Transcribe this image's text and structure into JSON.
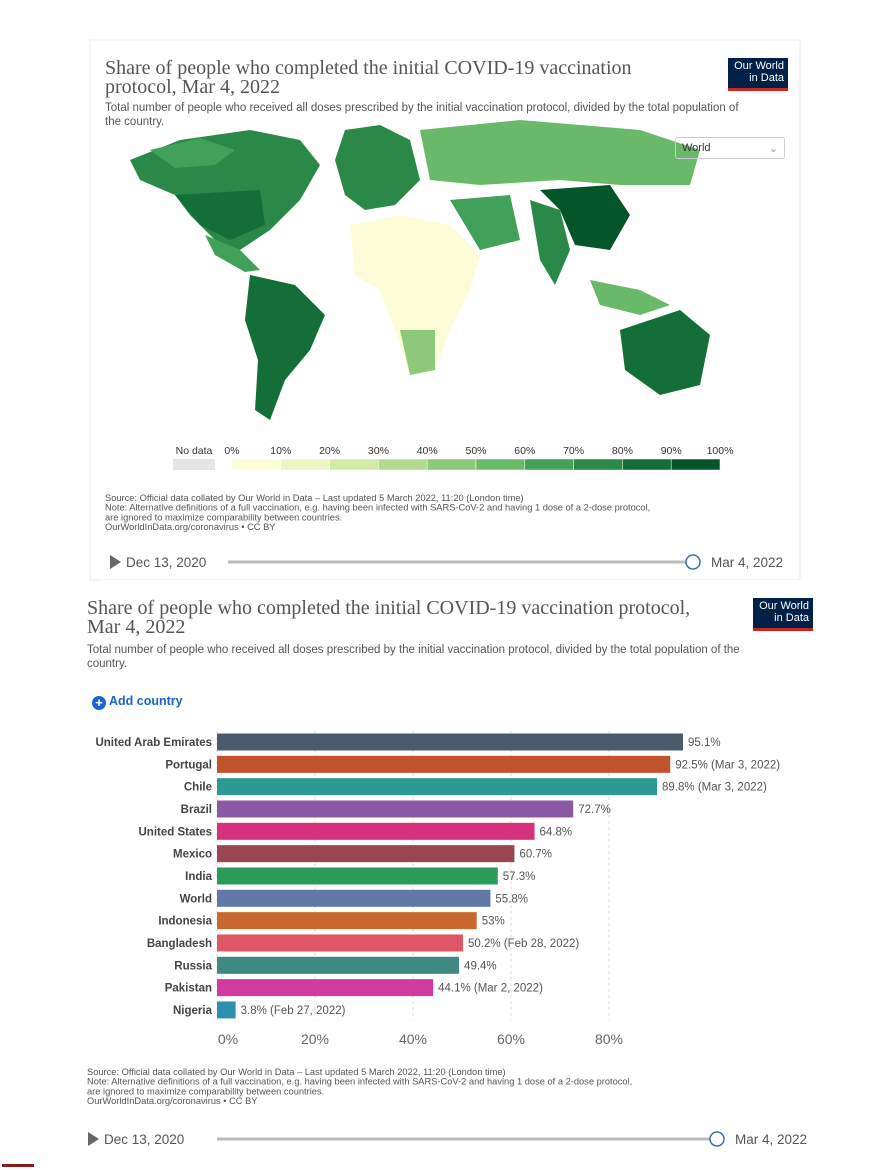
{
  "map_panel": {
    "title": "Share of people who completed the initial COVID-19 vaccination protocol, Mar 4, 2022",
    "subtitle": "Total number of people who received all doses prescribed by the initial vaccination protocol, divided by the total population of the country.",
    "logo": [
      "Our World",
      "in Data"
    ],
    "region_select": "World",
    "legend": {
      "no_data": "No data",
      "no_data_color": "#e5e5e5",
      "labels": [
        "0%",
        "10%",
        "20%",
        "30%",
        "40%",
        "50%",
        "60%",
        "70%",
        "80%",
        "90%",
        "100%"
      ],
      "colors": [
        "#fdfcd9",
        "#eef5c4",
        "#d3e9a6",
        "#b3da90",
        "#8ec97b",
        "#6ab96a",
        "#41a05a",
        "#2a8848",
        "#146e38",
        "#05552b"
      ]
    },
    "source_lines": [
      "Source: Official data collated by Our World in Data – Last updated 5 March 2022, 11:20 (London time)",
      "Note: Alternative definitions of a full vaccination, e.g. having been infected with SARS-CoV-2 and having 1 dose of a 2-dose protocol,",
      "are ignored to maximize comparability between countries.",
      "OurWorldInData.org/coronavirus • CC BY"
    ],
    "timeline": {
      "start": "Dec 13, 2020",
      "end": "Mar 4, 2022"
    }
  },
  "chart_data": {
    "type": "bar",
    "title": "Share of people who completed the initial COVID-19 vaccination protocol, Mar 4, 2022",
    "subtitle": "Total number of people who received all doses prescribed by the initial vaccination protocol, divided by the total population of the country.",
    "logo": [
      "Our World",
      "in Data"
    ],
    "add_country": "Add country",
    "categories": [
      "United Arab Emirates",
      "Portugal",
      "Chile",
      "Brazil",
      "United States",
      "Mexico",
      "India",
      "World",
      "Indonesia",
      "Bangladesh",
      "Russia",
      "Pakistan",
      "Nigeria"
    ],
    "values": [
      95.1,
      92.5,
      89.8,
      72.7,
      64.8,
      60.7,
      57.3,
      55.8,
      53,
      50.2,
      49.4,
      44.1,
      3.8
    ],
    "value_labels": [
      "95.1%",
      "92.5% (Mar 3, 2022)",
      "89.8% (Mar 3, 2022)",
      "72.7%",
      "64.8%",
      "60.7%",
      "57.3%",
      "55.8%",
      "53%",
      "50.2% (Feb 28, 2022)",
      "49.4%",
      "44.1% (Mar 2, 2022)",
      "3.8% (Feb 27, 2022)"
    ],
    "colors": [
      "#4c5a70",
      "#c0522c",
      "#2a9a93",
      "#8a58a5",
      "#d6317d",
      "#9a4552",
      "#2b9a5a",
      "#6179a8",
      "#c8682e",
      "#df5666",
      "#3f8a80",
      "#d13ba0",
      "#2e8fb0"
    ],
    "xlim": [
      0,
      100
    ],
    "xticks": [
      {
        "value": 0,
        "label": "0%"
      },
      {
        "value": 20,
        "label": "20%"
      },
      {
        "value": 40,
        "label": "40%"
      },
      {
        "value": 60,
        "label": "60%"
      },
      {
        "value": 80,
        "label": "80%"
      }
    ],
    "source_lines": [
      "Source: Official data collated by Our World in Data – Last updated 5 March 2022, 11:20 (London time)",
      "Note: Alternative definitions of a full vaccination, e.g. having been infected with SARS-CoV-2 and having 1 dose of a 2-dose protocol,",
      "are ignored to maximize comparability between countries.",
      "OurWorldInData.org/coronavirus • CC BY"
    ],
    "timeline": {
      "start": "Dec 13, 2020",
      "end": "Mar 4, 2022"
    }
  }
}
